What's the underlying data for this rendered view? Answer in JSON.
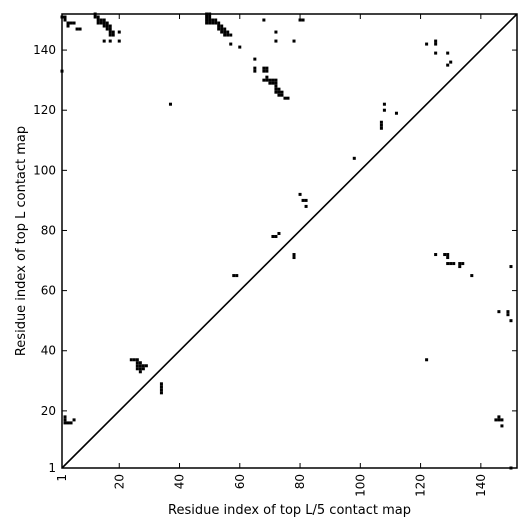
{
  "chart_data": {
    "type": "scatter",
    "title": "",
    "xlabel": "Residue index of top L/5 contact map",
    "ylabel": "Residue index of top L contact map",
    "xlim": [
      1,
      152
    ],
    "ylim": [
      1,
      152
    ],
    "x_ticks": [
      1,
      20,
      40,
      60,
      80,
      100,
      120,
      140
    ],
    "x_tick_labels": [
      "1",
      "20",
      "40",
      "60",
      "80",
      "100",
      "120",
      "140"
    ],
    "y_ticks": [
      1,
      20,
      40,
      60,
      80,
      100,
      120,
      140
    ],
    "y_tick_labels": [
      "1",
      "20",
      "40",
      "60",
      "80",
      "100",
      "120",
      "140"
    ],
    "diagonal": true,
    "grid": false,
    "marker_color": "#000000",
    "series": [
      {
        "points": [
          [
            1,
            151
          ],
          [
            2,
            151
          ],
          [
            2,
            150
          ],
          [
            1,
            133
          ],
          [
            3,
            149
          ],
          [
            3,
            148
          ],
          [
            4,
            149
          ],
          [
            5,
            149
          ],
          [
            6,
            147
          ],
          [
            7,
            147
          ],
          [
            12,
            152
          ],
          [
            12,
            151
          ],
          [
            13,
            151
          ],
          [
            13,
            150
          ],
          [
            13,
            149
          ],
          [
            14,
            150
          ],
          [
            14,
            149
          ],
          [
            15,
            150
          ],
          [
            15,
            149
          ],
          [
            15,
            148
          ],
          [
            16,
            149
          ],
          [
            16,
            148
          ],
          [
            16,
            147
          ],
          [
            17,
            148
          ],
          [
            17,
            147
          ],
          [
            17,
            146
          ],
          [
            17,
            145
          ],
          [
            18,
            146
          ],
          [
            18,
            145
          ],
          [
            15,
            143
          ],
          [
            17,
            143
          ],
          [
            20,
            143
          ],
          [
            20,
            146
          ],
          [
            37,
            122
          ],
          [
            49,
            152
          ],
          [
            50,
            152
          ],
          [
            49,
            151
          ],
          [
            50,
            151
          ],
          [
            49,
            150
          ],
          [
            50,
            150
          ],
          [
            51,
            150
          ],
          [
            52,
            150
          ],
          [
            49,
            149
          ],
          [
            50,
            149
          ],
          [
            51,
            149
          ],
          [
            52,
            149
          ],
          [
            53,
            149
          ],
          [
            53,
            148
          ],
          [
            54,
            148
          ],
          [
            53,
            147
          ],
          [
            54,
            147
          ],
          [
            55,
            147
          ],
          [
            54,
            146
          ],
          [
            55,
            146
          ],
          [
            56,
            146
          ],
          [
            55,
            145
          ],
          [
            56,
            145
          ],
          [
            57,
            145
          ],
          [
            57,
            142
          ],
          [
            60,
            141
          ],
          [
            65,
            137
          ],
          [
            65,
            134
          ],
          [
            65,
            133
          ],
          [
            68,
            150
          ],
          [
            68,
            134
          ],
          [
            69,
            134
          ],
          [
            68,
            133
          ],
          [
            69,
            133
          ],
          [
            68,
            130
          ],
          [
            69,
            130
          ],
          [
            69,
            131
          ],
          [
            70,
            130
          ],
          [
            71,
            130
          ],
          [
            70,
            129
          ],
          [
            71,
            129
          ],
          [
            72,
            129
          ],
          [
            72,
            130
          ],
          [
            72,
            128
          ],
          [
            72,
            127
          ],
          [
            72,
            126
          ],
          [
            73,
            127
          ],
          [
            73,
            126
          ],
          [
            73,
            125
          ],
          [
            74,
            126
          ],
          [
            74,
            125
          ],
          [
            75,
            124
          ],
          [
            76,
            124
          ],
          [
            72,
            146
          ],
          [
            72,
            143
          ],
          [
            78,
            143
          ],
          [
            80,
            150
          ],
          [
            81,
            150
          ],
          [
            108,
            122
          ],
          [
            108,
            120
          ],
          [
            107,
            116
          ],
          [
            107,
            115
          ],
          [
            107,
            114
          ],
          [
            112,
            119
          ],
          [
            98,
            104
          ],
          [
            122,
            142
          ],
          [
            125,
            143
          ],
          [
            125,
            142
          ],
          [
            125,
            139
          ],
          [
            129,
            139
          ],
          [
            129,
            135
          ],
          [
            130,
            136
          ],
          [
            80,
            92
          ],
          [
            81,
            90
          ],
          [
            82,
            90
          ],
          [
            82,
            88
          ],
          [
            71,
            78
          ],
          [
            72,
            78
          ],
          [
            73,
            79
          ],
          [
            78,
            72
          ],
          [
            78,
            71
          ],
          [
            59,
            65
          ],
          [
            58,
            65
          ],
          [
            125,
            72
          ],
          [
            128,
            72
          ],
          [
            129,
            72
          ],
          [
            129,
            71
          ],
          [
            129,
            69
          ],
          [
            130,
            69
          ],
          [
            131,
            69
          ],
          [
            133,
            69
          ],
          [
            133,
            68
          ],
          [
            134,
            69
          ],
          [
            137,
            65
          ],
          [
            150,
            68
          ],
          [
            122,
            37
          ],
          [
            146,
            53
          ],
          [
            149,
            53
          ],
          [
            149,
            52
          ],
          [
            150,
            50
          ],
          [
            24,
            37
          ],
          [
            25,
            37
          ],
          [
            26,
            37
          ],
          [
            26,
            36
          ],
          [
            27,
            36
          ],
          [
            26,
            35
          ],
          [
            27,
            35
          ],
          [
            28,
            35
          ],
          [
            29,
            35
          ],
          [
            26,
            34
          ],
          [
            27,
            34
          ],
          [
            28,
            34
          ],
          [
            27,
            33
          ],
          [
            34,
            29
          ],
          [
            34,
            28
          ],
          [
            34,
            27
          ],
          [
            34,
            26
          ],
          [
            2,
            18
          ],
          [
            2,
            17
          ],
          [
            2,
            16
          ],
          [
            3,
            16
          ],
          [
            4,
            16
          ],
          [
            5,
            17
          ],
          [
            145,
            17
          ],
          [
            146,
            17
          ],
          [
            147,
            17
          ],
          [
            146,
            18
          ],
          [
            147,
            15
          ],
          [
            150,
            1
          ]
        ]
      }
    ]
  }
}
